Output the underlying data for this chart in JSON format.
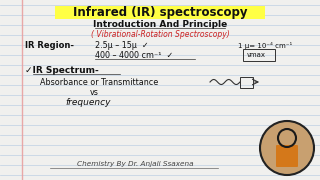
{
  "title": "Infrared (IR) spectroscopy",
  "subtitle": "Introduction And Principle",
  "subtitle2": "( Vibrational-Rotation Spectroscopy)",
  "ir_region_label": "IR Region-",
  "ir_region_v1": "2.5μ – 15μ  ✓",
  "ir_region_v2": "400 – 4000 cm⁻¹  ✓",
  "ir_region_right": "1 μ= 10⁻⁴ cm⁻¹",
  "ir_region_right2": "νmax",
  "ir_spectrum_label": "✓IR Spectrum-",
  "ir_spectrum_v1": "Absorbance or Transmittance",
  "ir_spectrum_v2": "vs",
  "ir_spectrum_v3": "frequency",
  "footer": "Chemistry By Dr. Anjali Ssaxena",
  "bg_color": "#f0f0ee",
  "line_color": "#b8cce4",
  "margin_color": "#e8a0a0",
  "title_color": "#111111",
  "title_underline_color": "#ffff00",
  "subtitle_color": "#111111",
  "subtitle2_color": "#cc2222",
  "body_color": "#111111",
  "footer_color": "#444444",
  "circle_color": "#222222"
}
